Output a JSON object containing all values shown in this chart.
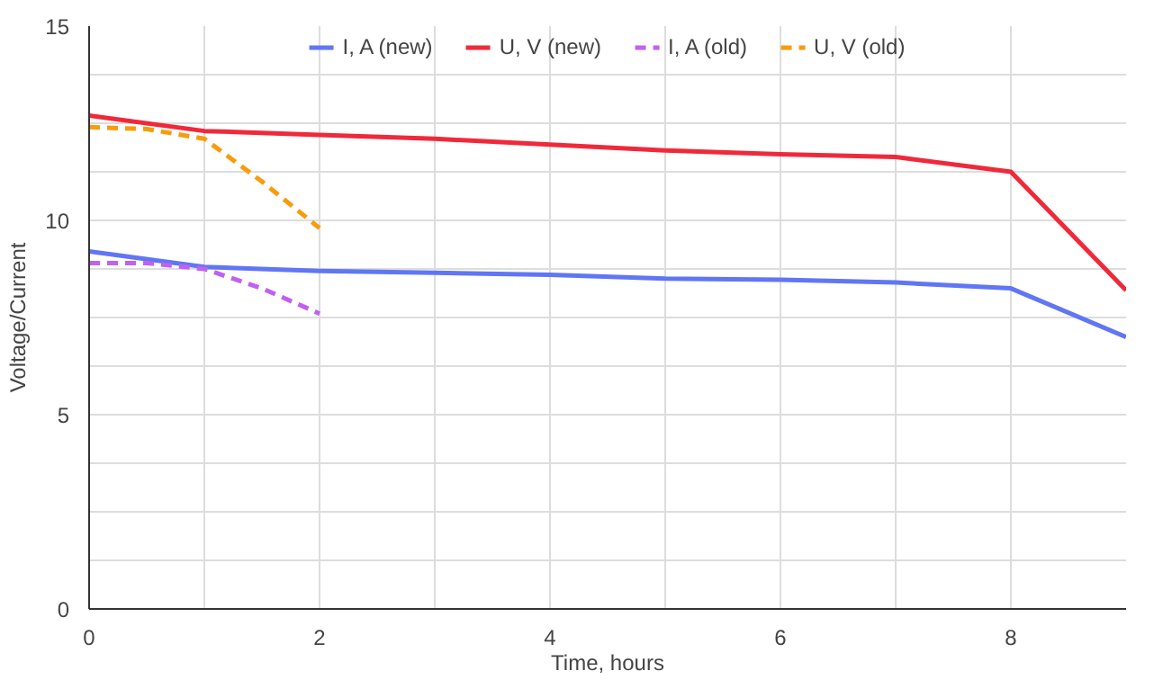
{
  "chart_data": {
    "type": "line",
    "xlabel": "Time, hours",
    "ylabel": "Voltage/Current",
    "xlim": [
      0,
      9
    ],
    "ylim": [
      0,
      15
    ],
    "xticks": [
      0,
      {
        "value": 1,
        "label": null
      },
      2,
      {
        "value": 3,
        "label": null
      },
      4,
      {
        "value": 5,
        "label": null
      },
      6,
      {
        "value": 7,
        "label": null
      },
      8
    ],
    "yticks": [
      0,
      {
        "value": 1.25,
        "label": null
      },
      {
        "value": 2.5,
        "label": null
      },
      {
        "value": 3.75,
        "label": null
      },
      5,
      {
        "value": 6.25,
        "label": null
      },
      {
        "value": 7.5,
        "label": null
      },
      {
        "value": 8.75,
        "label": null
      },
      10,
      {
        "value": 11.25,
        "label": null
      },
      {
        "value": 12.5,
        "label": null
      },
      {
        "value": 13.75,
        "label": null
      },
      15
    ],
    "grid": true,
    "legend": "top",
    "marker": "none",
    "series": [
      {
        "name": "I, A (new)",
        "color": "#6076f5",
        "line_style": "solid",
        "x": [
          0,
          1,
          2,
          3,
          4,
          5,
          6,
          7,
          8,
          9
        ],
        "values": [
          9.2,
          8.8,
          8.7,
          8.65,
          8.6,
          8.5,
          8.47,
          8.4,
          8.25,
          7.0
        ]
      },
      {
        "name": "U, V (new)",
        "color": "#f0293a",
        "line_style": "solid",
        "x": [
          0,
          1,
          2,
          3,
          4,
          5,
          6,
          7,
          8,
          9
        ],
        "values": [
          12.7,
          12.3,
          12.2,
          12.1,
          11.95,
          11.8,
          11.7,
          11.63,
          11.25,
          8.2
        ]
      },
      {
        "name": "I, A (old)",
        "color": "#c061f2",
        "line_style": "dashed",
        "x": [
          0,
          0.5,
          1,
          1.5,
          2
        ],
        "values": [
          8.9,
          8.9,
          8.75,
          8.25,
          7.6
        ]
      },
      {
        "name": "U, V (old)",
        "color": "#f79c0c",
        "line_style": "dashed",
        "x": [
          0,
          0.5,
          1,
          1.5,
          2
        ],
        "values": [
          12.4,
          12.35,
          12.1,
          11.0,
          9.8
        ]
      }
    ]
  }
}
